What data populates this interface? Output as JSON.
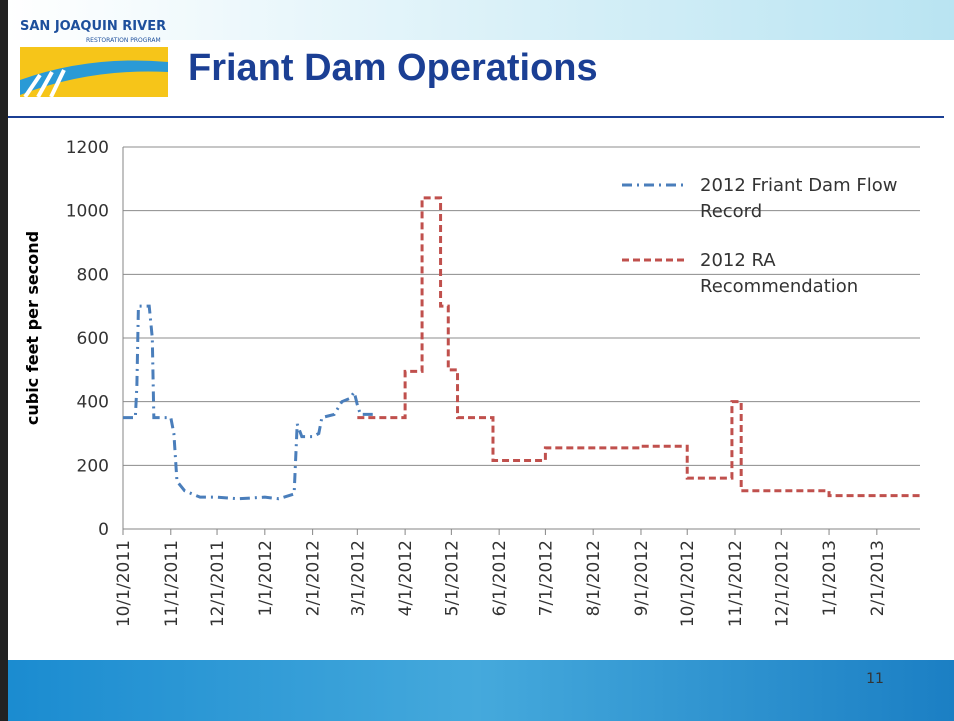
{
  "logo": {
    "line1": "SAN JOAQUIN RIVER",
    "line2": "RESTORATION PROGRAM"
  },
  "title": "Friant Dam Operations",
  "page_number": "11",
  "chart_data": {
    "type": "line",
    "y_label": "cubic feet per second",
    "ylim": [
      0,
      1200
    ],
    "yticks": [
      0,
      200,
      400,
      600,
      800,
      1000,
      1200
    ],
    "xlim": [
      "10/1/2011",
      "3/1/2013"
    ],
    "xticks": [
      "10/1/2011",
      "11/1/2011",
      "12/1/2011",
      "1/1/2012",
      "2/1/2012",
      "3/1/2012",
      "4/1/2012",
      "5/1/2012",
      "6/1/2012",
      "7/1/2012",
      "8/1/2012",
      "9/1/2012",
      "10/1/2012",
      "11/1/2012",
      "12/1/2012",
      "1/1/2013",
      "2/1/2013"
    ],
    "grid": true,
    "legend": "top-right",
    "series": [
      {
        "name": "2012 Friant Dam Flow Record",
        "color": "#4a7ebb",
        "dash": "dash-dot",
        "x": [
          "10/1/2011",
          "10/9/2011",
          "10/10/2011",
          "10/11/2011",
          "10/18/2011",
          "10/20/2011",
          "10/21/2011",
          "11/1/2011",
          "11/3/2011",
          "11/5/2011",
          "11/10/2011",
          "11/20/2011",
          "12/1/2011",
          "12/15/2011",
          "1/1/2012",
          "1/10/2012",
          "1/20/2012",
          "1/22/2012",
          "1/25/2012",
          "2/1/2012",
          "2/5/2012",
          "2/7/2012",
          "2/15/2012",
          "2/20/2012",
          "2/25/2012",
          "2/28/2012",
          "3/1/2012",
          "3/3/2012",
          "3/12/2012"
        ],
        "values": [
          350,
          350,
          450,
          700,
          700,
          600,
          350,
          350,
          300,
          150,
          120,
          100,
          100,
          95,
          100,
          95,
          110,
          330,
          290,
          290,
          300,
          350,
          360,
          400,
          410,
          430,
          390,
          360,
          360
        ]
      },
      {
        "name": "2012 RA Recommendation",
        "color": "#c0504d",
        "dash": "dash",
        "x": [
          "3/1/2012",
          "4/1/2012",
          "4/1/2012",
          "4/12/2012",
          "4/12/2012",
          "4/24/2012",
          "4/24/2012",
          "4/29/2012",
          "4/29/2012",
          "5/5/2012",
          "5/5/2012",
          "5/28/2012",
          "5/28/2012",
          "7/1/2012",
          "7/1/2012",
          "9/1/2012",
          "9/1/2012",
          "10/1/2012",
          "10/1/2012",
          "10/30/2012",
          "10/30/2012",
          "11/5/2012",
          "11/5/2012",
          "1/1/2013",
          "1/1/2013",
          "3/1/2013"
        ],
        "values": [
          350,
          350,
          495,
          495,
          1040,
          1040,
          700,
          700,
          500,
          500,
          350,
          350,
          215,
          215,
          255,
          255,
          260,
          260,
          160,
          160,
          400,
          400,
          120,
          120,
          105,
          105
        ]
      }
    ]
  }
}
